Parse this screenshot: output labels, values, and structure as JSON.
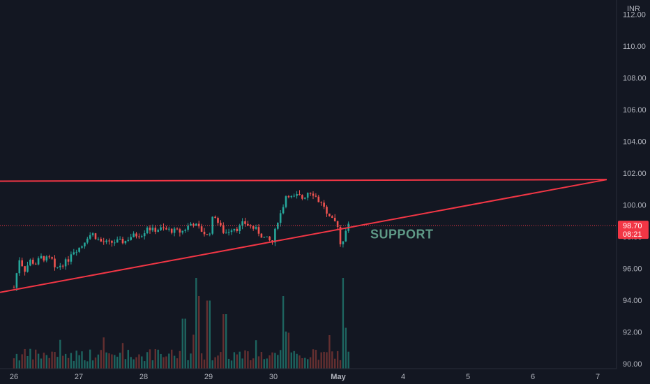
{
  "chart_data": {
    "type": "candlestick",
    "title": "",
    "currency": "INR",
    "y_axis": {
      "range": [
        89.7,
        112.9
      ],
      "ticks": [
        "112.00",
        "110.00",
        "108.00",
        "106.00",
        "104.00",
        "102.00",
        "100.00",
        "98.00",
        "96.00",
        "94.00",
        "92.00",
        "90.00"
      ]
    },
    "x_axis": {
      "ticks": [
        "26",
        "27",
        "28",
        "29",
        "30",
        "May",
        "4",
        "5",
        "6",
        "7"
      ]
    },
    "last_price": {
      "value": 98.7,
      "label": "98.70",
      "countdown": "08:21"
    },
    "trendlines": [
      {
        "name": "resistance",
        "from": {
          "x": "Apr 25 23:00",
          "y": 101.5
        },
        "to": {
          "x": "May 7 02:00",
          "y": 101.6
        },
        "color": "#f23645"
      },
      {
        "name": "support",
        "from": {
          "x": "Apr 25 23:00",
          "y": 94.5
        },
        "to": {
          "x": "May 7 02:00",
          "y": 101.6
        },
        "color": "#f23645"
      }
    ],
    "annotations": [
      {
        "text": "SUPPORT",
        "at": {
          "x": "May 1 12:00",
          "y": 98.2
        },
        "color": "#5f9a87"
      }
    ],
    "price_path": [
      {
        "x": "Apr 26 00:00",
        "y": 94.8
      },
      {
        "x": "Apr 26 02:00",
        "y": 96.6
      },
      {
        "x": "Apr 26 04:00",
        "y": 95.9
      },
      {
        "x": "Apr 26 06:00",
        "y": 96.5
      },
      {
        "x": "Apr 26 08:00",
        "y": 96.3
      },
      {
        "x": "Apr 26 10:00",
        "y": 96.7
      },
      {
        "x": "Apr 26 12:00",
        "y": 96.6
      },
      {
        "x": "Apr 26 14:00",
        "y": 96.6
      },
      {
        "x": "Apr 26 15:00",
        "y": 95.9
      },
      {
        "x": "Apr 26 17:00",
        "y": 96.2
      },
      {
        "x": "Apr 26 20:00",
        "y": 96.5
      },
      {
        "x": "Apr 26 21:00",
        "y": 97.0
      },
      {
        "x": "Apr 27 01:00",
        "y": 97.4
      },
      {
        "x": "Apr 27 03:00",
        "y": 98.0
      },
      {
        "x": "Apr 27 05:00",
        "y": 98.2
      },
      {
        "x": "Apr 27 08:00",
        "y": 97.7
      },
      {
        "x": "Apr 27 11:00",
        "y": 97.6
      },
      {
        "x": "Apr 27 14:00",
        "y": 97.7
      },
      {
        "x": "Apr 27 17:00",
        "y": 97.7
      },
      {
        "x": "Apr 27 19:00",
        "y": 98.0
      },
      {
        "x": "Apr 27 21:00",
        "y": 98.1
      },
      {
        "x": "Apr 28 00:00",
        "y": 98.2
      },
      {
        "x": "Apr 28 01:00",
        "y": 98.7
      },
      {
        "x": "Apr 28 03:00",
        "y": 98.4
      },
      {
        "x": "Apr 28 06:00",
        "y": 98.5
      },
      {
        "x": "Apr 28 10:00",
        "y": 98.4
      },
      {
        "x": "Apr 28 14:00",
        "y": 98.3
      },
      {
        "x": "Apr 28 16:00",
        "y": 98.6
      },
      {
        "x": "Apr 28 18:00",
        "y": 98.9
      },
      {
        "x": "Apr 28 20:00",
        "y": 98.6
      },
      {
        "x": "Apr 28 22:00",
        "y": 98.3
      },
      {
        "x": "Apr 29 00:00",
        "y": 98.0
      },
      {
        "x": "Apr 29 02:00",
        "y": 99.5
      },
      {
        "x": "Apr 29 04:00",
        "y": 98.7
      },
      {
        "x": "Apr 29 06:00",
        "y": 98.2
      },
      {
        "x": "Apr 29 09:00",
        "y": 98.6
      },
      {
        "x": "Apr 29 11:00",
        "y": 98.5
      },
      {
        "x": "Apr 29 13:00",
        "y": 98.9
      },
      {
        "x": "Apr 29 15:00",
        "y": 98.7
      },
      {
        "x": "Apr 29 18:00",
        "y": 98.4
      },
      {
        "x": "Apr 29 20:00",
        "y": 98.0
      },
      {
        "x": "Apr 29 22:00",
        "y": 97.8
      },
      {
        "x": "Apr 30 00:00",
        "y": 97.6
      },
      {
        "x": "Apr 30 01:00",
        "y": 98.8
      },
      {
        "x": "Apr 30 03:00",
        "y": 99.6
      },
      {
        "x": "Apr 30 05:00",
        "y": 100.8
      },
      {
        "x": "Apr 30 07:00",
        "y": 100.4
      },
      {
        "x": "Apr 30 09:00",
        "y": 100.6
      },
      {
        "x": "Apr 30 11:00",
        "y": 100.4
      },
      {
        "x": "Apr 30 13:00",
        "y": 100.9
      },
      {
        "x": "Apr 30 15:00",
        "y": 100.7
      },
      {
        "x": "Apr 30 17:00",
        "y": 100.2
      },
      {
        "x": "Apr 30 19:00",
        "y": 99.9
      },
      {
        "x": "Apr 30 20:00",
        "y": 99.2
      },
      {
        "x": "Apr 30 23:00",
        "y": 98.9
      },
      {
        "x": "May 1 00:00",
        "y": 98.7
      },
      {
        "x": "May 1 01:00",
        "y": 97.2
      },
      {
        "x": "May 1 02:00",
        "y": 98.0
      },
      {
        "x": "May 1 03:00",
        "y": 98.6
      },
      {
        "x": "May 1 04:00",
        "y": 98.7
      }
    ],
    "volume_spikes": [
      {
        "x": "Apr 28 15:00",
        "v": 0.55
      },
      {
        "x": "Apr 28 20:00",
        "v": 0.8
      },
      {
        "x": "Apr 29 00:00",
        "v": 0.75
      },
      {
        "x": "Apr 29 06:00",
        "v": 0.6
      },
      {
        "x": "Apr 30 04:00",
        "v": 0.8
      },
      {
        "x": "May 1 02:00",
        "v": 1.0
      },
      {
        "x": "May 1 03:00",
        "v": 0.45
      }
    ]
  }
}
